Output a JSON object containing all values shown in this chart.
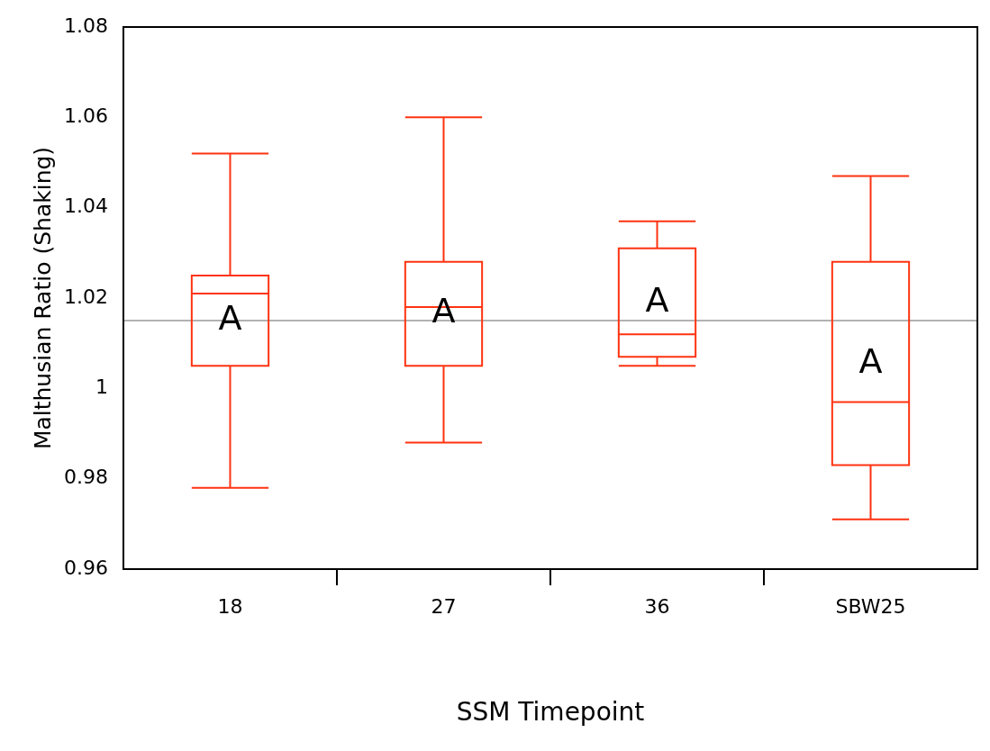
{
  "chart_data": {
    "type": "box",
    "xlabel": "SSM Timepoint",
    "ylabel": "Malthusian Ratio (Shaking)",
    "categories": [
      "18",
      "27",
      "36",
      "SBW25"
    ],
    "series": [
      {
        "color": "#ff3311",
        "boxes": [
          {
            "low": 0.978,
            "q1": 1.005,
            "median": 1.021,
            "q3": 1.025,
            "high": 1.052
          },
          {
            "low": 0.988,
            "q1": 1.005,
            "median": 1.018,
            "q3": 1.028,
            "high": 1.06
          },
          {
            "low": 1.005,
            "q1": 1.007,
            "median": 1.012,
            "q3": 1.031,
            "high": 1.037
          },
          {
            "low": 0.971,
            "q1": 0.983,
            "median": 0.997,
            "q3": 1.028,
            "high": 1.047
          }
        ]
      }
    ],
    "ylim": [
      0.96,
      1.08
    ],
    "yticks": [
      0.96,
      0.98,
      1,
      1.02,
      1.04,
      1.06,
      1.08
    ],
    "ref_lines": [
      {
        "axis": "y",
        "value": 1.015,
        "color": "#999999"
      }
    ],
    "annotations": [
      "A",
      "A",
      "A",
      "A"
    ],
    "grid": false,
    "legend": false
  }
}
